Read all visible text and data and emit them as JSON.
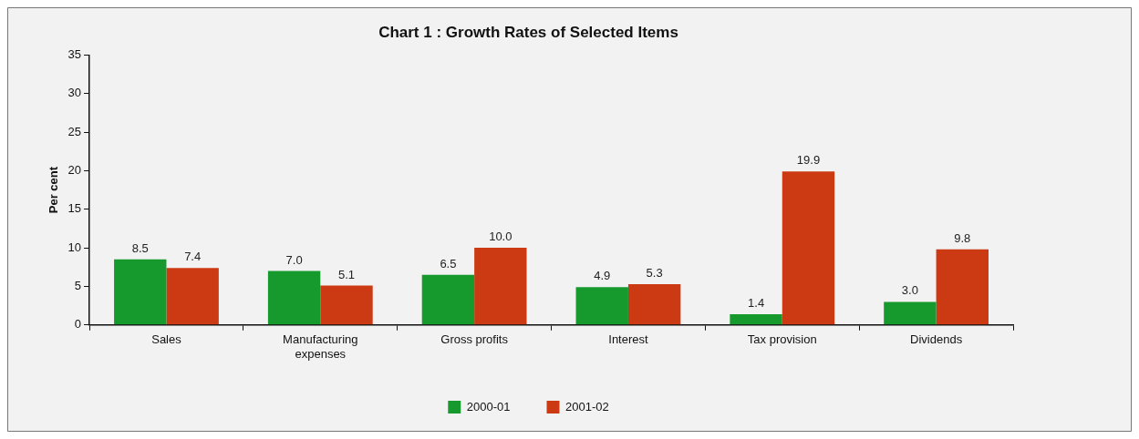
{
  "chart_data": {
    "type": "bar",
    "title": "Chart 1 : Growth Rates of Selected Items",
    "ylabel": "Per cent",
    "categories": [
      "Sales",
      "Manufacturing expenses",
      "Gross profits",
      "Interest",
      "Tax provision",
      "Dividends"
    ],
    "series": [
      {
        "name": "2000-01",
        "color": "#169a2e",
        "values": [
          8.5,
          7.0,
          6.5,
          4.9,
          1.4,
          3.0
        ],
        "value_labels": [
          "8.5",
          "7.0",
          "6.5",
          "4.9",
          "1.4",
          "3.0"
        ]
      },
      {
        "name": "2001-02",
        "color": "#cc3a14",
        "values": [
          7.4,
          5.1,
          10.0,
          5.3,
          19.9,
          9.8
        ],
        "value_labels": [
          "7.4",
          "5.1",
          "10.0",
          "5.3",
          "19.9",
          "9.8"
        ]
      }
    ],
    "ylim": [
      0,
      35
    ],
    "yticks": [
      0,
      5,
      10,
      15,
      20,
      25,
      30,
      35
    ],
    "grid": false,
    "legend": "bottom"
  }
}
